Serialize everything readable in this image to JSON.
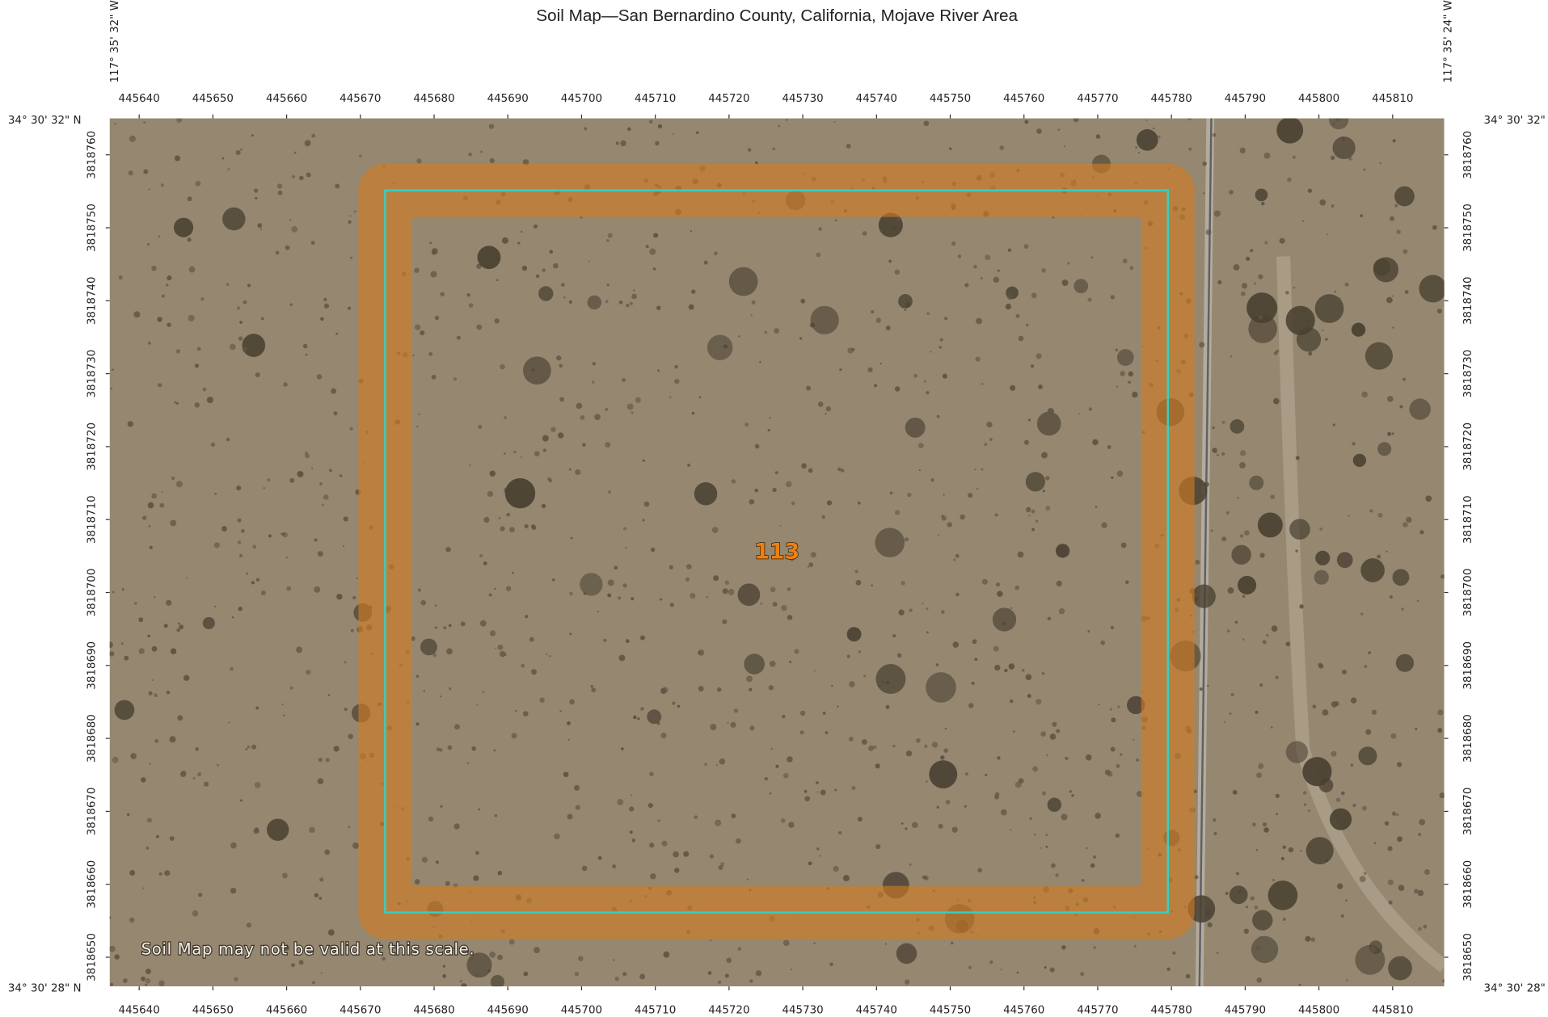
{
  "title": "Soil Map—San Bernardino County, California, Mojave River Area",
  "corners": {
    "west_lon": "117° 35' 32\" W",
    "east_lon": "117° 35' 24\" W",
    "north_lat": "34° 30' 32\" N",
    "south_lat": "34° 30' 28\" N"
  },
  "xlim": [
    445636,
    445817
  ],
  "ylim": [
    3818646,
    3818765
  ],
  "easting_ticks": [
    445640,
    445650,
    445660,
    445670,
    445680,
    445690,
    445700,
    445710,
    445720,
    445730,
    445740,
    445750,
    445760,
    445770,
    445780,
    445790,
    445800,
    445810
  ],
  "northing_ticks": [
    3818650,
    3818660,
    3818670,
    3818680,
    3818690,
    3818700,
    3818710,
    3818720,
    3818730,
    3818740,
    3818750,
    3818760
  ],
  "map_unit": "113",
  "note": "Soil Map may not be valid at this scale."
}
